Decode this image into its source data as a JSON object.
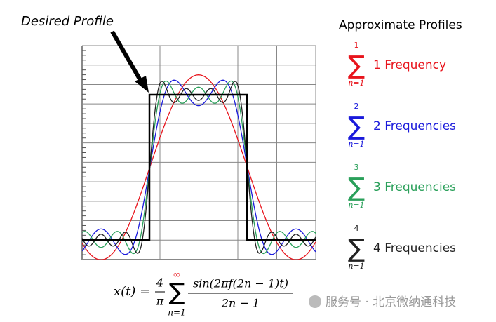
{
  "annotation": "Desired Profile",
  "sum_symbol": "∑",
  "legend": {
    "title": "Approximate Profiles",
    "items": [
      {
        "upper": "1",
        "lower": "n=1",
        "label": "1 Frequency",
        "color": "#e8141c"
      },
      {
        "upper": "2",
        "lower": "n=1",
        "label": "2 Frequencies",
        "color": "#1a1adb"
      },
      {
        "upper": "3",
        "lower": "n=1",
        "label": "3 Frequencies",
        "color": "#2aa05a"
      },
      {
        "upper": "4",
        "lower": "n=1",
        "label": "4 Frequencies",
        "color": "#222222"
      }
    ]
  },
  "formula": {
    "lhs": "x(t) =",
    "coef_num": "4",
    "coef_den": "π",
    "upper": "∞",
    "lower": "n=1",
    "numerator": "sin(2πf(2n − 1)t)",
    "denominator": "2n − 1"
  },
  "watermark": "服务号 · 北京微纳通科技"
}
